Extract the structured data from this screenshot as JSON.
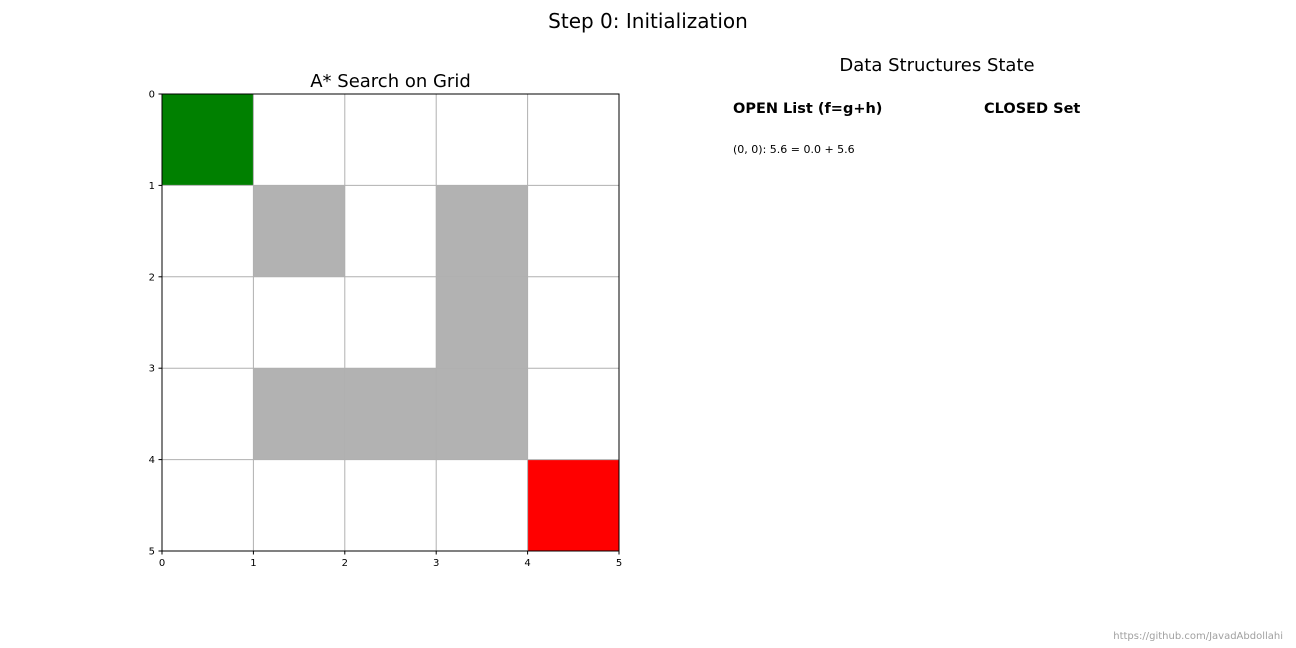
{
  "figure": {
    "suptitle": "Step 0: Initialization",
    "footer": "https://github.com/JavadAbdollahi"
  },
  "chart_data": {
    "type": "heatmap",
    "title": "A* Search on Grid",
    "xlabel": "",
    "ylabel": "",
    "xlim": [
      0,
      5
    ],
    "ylim": [
      5,
      0
    ],
    "xticks": [
      "0",
      "1",
      "2",
      "3",
      "4",
      "5"
    ],
    "yticks": [
      "0",
      "1",
      "2",
      "3",
      "4",
      "5"
    ],
    "grid": true,
    "rows": 5,
    "cols": 5,
    "start": [
      0,
      0
    ],
    "goal": [
      4,
      4
    ],
    "obstacles": [
      [
        1,
        1
      ],
      [
        1,
        3
      ],
      [
        2,
        3
      ],
      [
        3,
        1
      ],
      [
        3,
        2
      ],
      [
        3,
        3
      ]
    ],
    "colors": {
      "start": "#008000",
      "goal": "#ff0000",
      "obstacle": "#b2b2b2",
      "free": "#ffffff",
      "gridline": "#b0b0b0"
    }
  },
  "data_structures": {
    "title": "Data Structures State",
    "open_header": "OPEN List (f=g+h)",
    "closed_header": "CLOSED Set",
    "open_items": [
      "(0, 0): 5.6 = 0.0 + 5.6"
    ],
    "closed_items": []
  }
}
